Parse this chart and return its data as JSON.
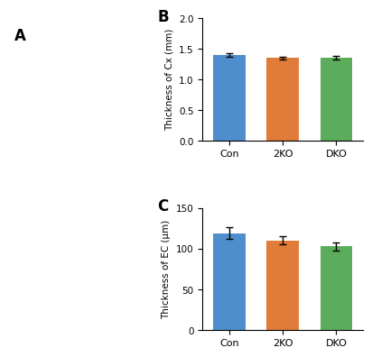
{
  "chart_B": {
    "title": "B",
    "ylabel": "Thickness of Cx (mm)",
    "categories": [
      "Con",
      "2KO",
      "DKO"
    ],
    "values": [
      1.4,
      1.35,
      1.36
    ],
    "errors": [
      0.03,
      0.025,
      0.03
    ],
    "ylim": [
      0,
      2.0
    ],
    "yticks": [
      0,
      0.5,
      1.0,
      1.5,
      2.0
    ],
    "bar_colors": [
      "#4E8ECC",
      "#E07B39",
      "#5BAD5B"
    ]
  },
  "chart_C": {
    "title": "C",
    "ylabel": "Thickness of EC (μm)",
    "categories": [
      "Con",
      "2KO",
      "DKO"
    ],
    "values": [
      119,
      110,
      103
    ],
    "errors": [
      7,
      5,
      5
    ],
    "ylim": [
      0,
      150
    ],
    "yticks": [
      0,
      50,
      100,
      150
    ],
    "bar_colors": [
      "#4E8ECC",
      "#E07B39",
      "#5BAD5B"
    ]
  },
  "panel_A_label": "A",
  "bg_color": "#ffffff"
}
